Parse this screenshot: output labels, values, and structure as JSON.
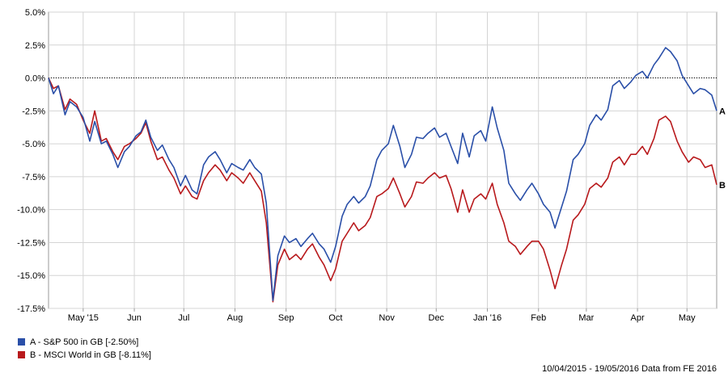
{
  "chart_data": {
    "type": "line",
    "ylim": [
      -17.5,
      5.0
    ],
    "y_ticks": [
      "5.0%",
      "2.5%",
      "0.0%",
      "-2.5%",
      "-5.0%",
      "-7.5%",
      "-10.0%",
      "-12.5%",
      "-15.0%",
      "-17.5%"
    ],
    "y_tick_values": [
      5.0,
      2.5,
      0.0,
      -2.5,
      -5.0,
      -7.5,
      -10.0,
      -12.5,
      -15.0,
      -17.5
    ],
    "x_range": [
      "2015-04-10",
      "2016-05-19"
    ],
    "x_ticks": [
      {
        "label": "May '15",
        "date": "2015-05-01"
      },
      {
        "label": "Jun",
        "date": "2015-06-01"
      },
      {
        "label": "Jul",
        "date": "2015-07-01"
      },
      {
        "label": "Aug",
        "date": "2015-08-01"
      },
      {
        "label": "Sep",
        "date": "2015-09-01"
      },
      {
        "label": "Oct",
        "date": "2015-10-01"
      },
      {
        "label": "Nov",
        "date": "2015-11-01"
      },
      {
        "label": "Dec",
        "date": "2015-12-01"
      },
      {
        "label": "Jan '16",
        "date": "2016-01-01"
      },
      {
        "label": "Feb",
        "date": "2016-02-01"
      },
      {
        "label": "Mar",
        "date": "2016-03-01"
      },
      {
        "label": "Apr",
        "date": "2016-04-01"
      },
      {
        "label": "May",
        "date": "2016-05-01"
      }
    ],
    "grid": true,
    "zero_line": "dotted",
    "series": [
      {
        "name": "A - S&P 500 in GB [-2.50%]",
        "end_label": "A",
        "color": "#2a4fa8",
        "points": [
          [
            "2015-04-10",
            0.0
          ],
          [
            "2015-04-13",
            -1.2
          ],
          [
            "2015-04-16",
            -0.6
          ],
          [
            "2015-04-20",
            -2.8
          ],
          [
            "2015-04-23",
            -1.8
          ],
          [
            "2015-04-27",
            -2.2
          ],
          [
            "2015-05-01",
            -3.0
          ],
          [
            "2015-05-05",
            -4.8
          ],
          [
            "2015-05-08",
            -3.3
          ],
          [
            "2015-05-12",
            -5.0
          ],
          [
            "2015-05-15",
            -4.8
          ],
          [
            "2015-05-19",
            -5.8
          ],
          [
            "2015-05-22",
            -6.8
          ],
          [
            "2015-05-26",
            -5.6
          ],
          [
            "2015-05-29",
            -5.2
          ],
          [
            "2015-06-02",
            -4.4
          ],
          [
            "2015-06-05",
            -4.1
          ],
          [
            "2015-06-08",
            -3.2
          ],
          [
            "2015-06-11",
            -4.5
          ],
          [
            "2015-06-15",
            -5.5
          ],
          [
            "2015-06-18",
            -5.1
          ],
          [
            "2015-06-22",
            -6.2
          ],
          [
            "2015-06-25",
            -6.8
          ],
          [
            "2015-06-29",
            -8.2
          ],
          [
            "2015-07-02",
            -7.4
          ],
          [
            "2015-07-06",
            -8.5
          ],
          [
            "2015-07-09",
            -8.8
          ],
          [
            "2015-07-13",
            -6.6
          ],
          [
            "2015-07-16",
            -6.0
          ],
          [
            "2015-07-20",
            -5.6
          ],
          [
            "2015-07-23",
            -6.2
          ],
          [
            "2015-07-27",
            -7.2
          ],
          [
            "2015-07-30",
            -6.5
          ],
          [
            "2015-08-03",
            -6.8
          ],
          [
            "2015-08-06",
            -7.0
          ],
          [
            "2015-08-10",
            -6.2
          ],
          [
            "2015-08-13",
            -6.8
          ],
          [
            "2015-08-17",
            -7.3
          ],
          [
            "2015-08-20",
            -9.5
          ],
          [
            "2015-08-24",
            -16.9
          ],
          [
            "2015-08-27",
            -13.5
          ],
          [
            "2015-08-31",
            -12.0
          ],
          [
            "2015-09-03",
            -12.5
          ],
          [
            "2015-09-07",
            -12.2
          ],
          [
            "2015-09-10",
            -12.8
          ],
          [
            "2015-09-14",
            -12.2
          ],
          [
            "2015-09-17",
            -11.8
          ],
          [
            "2015-09-21",
            -12.6
          ],
          [
            "2015-09-24",
            -13.0
          ],
          [
            "2015-09-28",
            -14.0
          ],
          [
            "2015-10-01",
            -12.8
          ],
          [
            "2015-10-05",
            -10.5
          ],
          [
            "2015-10-08",
            -9.6
          ],
          [
            "2015-10-12",
            -9.0
          ],
          [
            "2015-10-15",
            -9.5
          ],
          [
            "2015-10-19",
            -9.0
          ],
          [
            "2015-10-22",
            -8.2
          ],
          [
            "2015-10-26",
            -6.2
          ],
          [
            "2015-10-29",
            -5.5
          ],
          [
            "2015-11-02",
            -5.0
          ],
          [
            "2015-11-05",
            -3.6
          ],
          [
            "2015-11-09",
            -5.2
          ],
          [
            "2015-11-12",
            -6.8
          ],
          [
            "2015-11-16",
            -5.8
          ],
          [
            "2015-11-19",
            -4.5
          ],
          [
            "2015-11-23",
            -4.6
          ],
          [
            "2015-11-26",
            -4.2
          ],
          [
            "2015-11-30",
            -3.8
          ],
          [
            "2015-12-03",
            -4.5
          ],
          [
            "2015-12-07",
            -4.2
          ],
          [
            "2015-12-10",
            -5.2
          ],
          [
            "2015-12-14",
            -6.5
          ],
          [
            "2015-12-17",
            -4.2
          ],
          [
            "2015-12-21",
            -6.0
          ],
          [
            "2015-12-24",
            -4.4
          ],
          [
            "2015-12-28",
            -4.0
          ],
          [
            "2015-12-31",
            -4.8
          ],
          [
            "2016-01-04",
            -2.2
          ],
          [
            "2016-01-07",
            -3.8
          ],
          [
            "2016-01-11",
            -5.5
          ],
          [
            "2016-01-14",
            -8.0
          ],
          [
            "2016-01-18",
            -8.8
          ],
          [
            "2016-01-21",
            -9.3
          ],
          [
            "2016-01-25",
            -8.5
          ],
          [
            "2016-01-28",
            -8.0
          ],
          [
            "2016-02-01",
            -8.8
          ],
          [
            "2016-02-04",
            -9.6
          ],
          [
            "2016-02-08",
            -10.2
          ],
          [
            "2016-02-11",
            -11.4
          ],
          [
            "2016-02-15",
            -9.8
          ],
          [
            "2016-02-18",
            -8.6
          ],
          [
            "2016-02-22",
            -6.2
          ],
          [
            "2016-02-25",
            -5.8
          ],
          [
            "2016-02-29",
            -5.0
          ],
          [
            "2016-03-03",
            -3.6
          ],
          [
            "2016-03-07",
            -2.8
          ],
          [
            "2016-03-10",
            -3.2
          ],
          [
            "2016-03-14",
            -2.4
          ],
          [
            "2016-03-17",
            -0.6
          ],
          [
            "2016-03-21",
            -0.2
          ],
          [
            "2016-03-24",
            -0.8
          ],
          [
            "2016-03-28",
            -0.3
          ],
          [
            "2016-03-31",
            0.2
          ],
          [
            "2016-04-04",
            0.5
          ],
          [
            "2016-04-07",
            0.0
          ],
          [
            "2016-04-11",
            1.0
          ],
          [
            "2016-04-14",
            1.5
          ],
          [
            "2016-04-18",
            2.3
          ],
          [
            "2016-04-21",
            2.0
          ],
          [
            "2016-04-25",
            1.3
          ],
          [
            "2016-04-28",
            0.2
          ],
          [
            "2016-05-02",
            -0.6
          ],
          [
            "2016-05-05",
            -1.2
          ],
          [
            "2016-05-09",
            -0.8
          ],
          [
            "2016-05-12",
            -0.9
          ],
          [
            "2016-05-16",
            -1.3
          ],
          [
            "2016-05-19",
            -2.5
          ]
        ]
      },
      {
        "name": "B - MSCI World in GB [-8.11%]",
        "end_label": "B",
        "color": "#b8191c",
        "points": [
          [
            "2015-04-10",
            0.0
          ],
          [
            "2015-04-13",
            -0.8
          ],
          [
            "2015-04-16",
            -0.6
          ],
          [
            "2015-04-20",
            -2.4
          ],
          [
            "2015-04-23",
            -1.6
          ],
          [
            "2015-04-27",
            -2.0
          ],
          [
            "2015-05-01",
            -3.2
          ],
          [
            "2015-05-05",
            -4.2
          ],
          [
            "2015-05-08",
            -2.5
          ],
          [
            "2015-05-12",
            -4.8
          ],
          [
            "2015-05-15",
            -4.6
          ],
          [
            "2015-05-19",
            -5.6
          ],
          [
            "2015-05-22",
            -6.2
          ],
          [
            "2015-05-26",
            -5.2
          ],
          [
            "2015-05-29",
            -5.0
          ],
          [
            "2015-06-02",
            -4.6
          ],
          [
            "2015-06-05",
            -4.2
          ],
          [
            "2015-06-08",
            -3.4
          ],
          [
            "2015-06-11",
            -4.8
          ],
          [
            "2015-06-15",
            -6.2
          ],
          [
            "2015-06-18",
            -6.0
          ],
          [
            "2015-06-22",
            -7.0
          ],
          [
            "2015-06-25",
            -7.6
          ],
          [
            "2015-06-29",
            -8.8
          ],
          [
            "2015-07-02",
            -8.2
          ],
          [
            "2015-07-06",
            -9.0
          ],
          [
            "2015-07-09",
            -9.2
          ],
          [
            "2015-07-13",
            -7.8
          ],
          [
            "2015-07-16",
            -7.2
          ],
          [
            "2015-07-20",
            -6.6
          ],
          [
            "2015-07-23",
            -7.0
          ],
          [
            "2015-07-27",
            -7.8
          ],
          [
            "2015-07-30",
            -7.2
          ],
          [
            "2015-08-03",
            -7.6
          ],
          [
            "2015-08-06",
            -8.0
          ],
          [
            "2015-08-10",
            -7.2
          ],
          [
            "2015-08-13",
            -7.8
          ],
          [
            "2015-08-17",
            -8.6
          ],
          [
            "2015-08-20",
            -11.0
          ],
          [
            "2015-08-24",
            -17.0
          ],
          [
            "2015-08-27",
            -14.2
          ],
          [
            "2015-08-31",
            -13.0
          ],
          [
            "2015-09-03",
            -13.8
          ],
          [
            "2015-09-07",
            -13.4
          ],
          [
            "2015-09-10",
            -13.8
          ],
          [
            "2015-09-14",
            -13.0
          ],
          [
            "2015-09-17",
            -12.6
          ],
          [
            "2015-09-21",
            -13.6
          ],
          [
            "2015-09-24",
            -14.2
          ],
          [
            "2015-09-28",
            -15.4
          ],
          [
            "2015-10-01",
            -14.5
          ],
          [
            "2015-10-05",
            -12.4
          ],
          [
            "2015-10-08",
            -11.8
          ],
          [
            "2015-10-12",
            -11.0
          ],
          [
            "2015-10-15",
            -11.6
          ],
          [
            "2015-10-19",
            -11.2
          ],
          [
            "2015-10-22",
            -10.6
          ],
          [
            "2015-10-26",
            -9.0
          ],
          [
            "2015-10-29",
            -8.8
          ],
          [
            "2015-11-02",
            -8.4
          ],
          [
            "2015-11-05",
            -7.6
          ],
          [
            "2015-11-09",
            -8.8
          ],
          [
            "2015-11-12",
            -9.8
          ],
          [
            "2015-11-16",
            -9.0
          ],
          [
            "2015-11-19",
            -7.9
          ],
          [
            "2015-11-23",
            -8.0
          ],
          [
            "2015-11-26",
            -7.6
          ],
          [
            "2015-11-30",
            -7.2
          ],
          [
            "2015-12-03",
            -7.6
          ],
          [
            "2015-12-07",
            -7.4
          ],
          [
            "2015-12-10",
            -8.4
          ],
          [
            "2015-12-14",
            -10.2
          ],
          [
            "2015-12-17",
            -8.5
          ],
          [
            "2015-12-21",
            -10.2
          ],
          [
            "2015-12-24",
            -9.2
          ],
          [
            "2015-12-28",
            -8.8
          ],
          [
            "2015-12-31",
            -9.2
          ],
          [
            "2016-01-04",
            -8.0
          ],
          [
            "2016-01-07",
            -9.6
          ],
          [
            "2016-01-11",
            -11.0
          ],
          [
            "2016-01-14",
            -12.4
          ],
          [
            "2016-01-18",
            -12.8
          ],
          [
            "2016-01-21",
            -13.4
          ],
          [
            "2016-01-25",
            -12.8
          ],
          [
            "2016-01-28",
            -12.4
          ],
          [
            "2016-02-01",
            -12.4
          ],
          [
            "2016-02-04",
            -13.0
          ],
          [
            "2016-02-08",
            -14.6
          ],
          [
            "2016-02-11",
            -16.0
          ],
          [
            "2016-02-15",
            -14.2
          ],
          [
            "2016-02-18",
            -13.0
          ],
          [
            "2016-02-22",
            -10.8
          ],
          [
            "2016-02-25",
            -10.4
          ],
          [
            "2016-02-29",
            -9.6
          ],
          [
            "2016-03-03",
            -8.4
          ],
          [
            "2016-03-07",
            -8.0
          ],
          [
            "2016-03-10",
            -8.3
          ],
          [
            "2016-03-14",
            -7.6
          ],
          [
            "2016-03-17",
            -6.4
          ],
          [
            "2016-03-21",
            -6.0
          ],
          [
            "2016-03-24",
            -6.6
          ],
          [
            "2016-03-28",
            -5.8
          ],
          [
            "2016-03-31",
            -5.8
          ],
          [
            "2016-04-04",
            -5.2
          ],
          [
            "2016-04-07",
            -5.8
          ],
          [
            "2016-04-11",
            -4.6
          ],
          [
            "2016-04-14",
            -3.2
          ],
          [
            "2016-04-18",
            -2.9
          ],
          [
            "2016-04-21",
            -3.3
          ],
          [
            "2016-04-25",
            -4.8
          ],
          [
            "2016-04-28",
            -5.6
          ],
          [
            "2016-05-02",
            -6.4
          ],
          [
            "2016-05-05",
            -6.0
          ],
          [
            "2016-05-09",
            -6.2
          ],
          [
            "2016-05-12",
            -6.8
          ],
          [
            "2016-05-16",
            -6.6
          ],
          [
            "2016-05-19",
            -8.11
          ]
        ]
      }
    ]
  },
  "footer": "10/04/2015 - 19/05/2016 Data from FE 2016"
}
